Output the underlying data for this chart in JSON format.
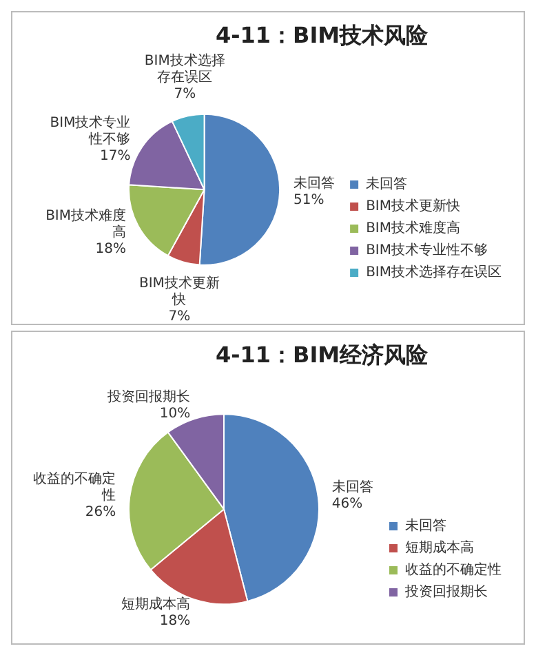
{
  "chart_data": [
    {
      "type": "pie",
      "title": "4-11：BIM技术风险",
      "categories": [
        "未回答",
        "BIM技术更新快",
        "BIM技术难度高",
        "BIM技术专业性不够",
        "BIM技术选择存在误区"
      ],
      "values": [
        51,
        7,
        18,
        17,
        7
      ],
      "value_labels": [
        "51%",
        "7%",
        "18%",
        "17%",
        "7%"
      ],
      "colors": [
        "#4f81bd",
        "#c0504d",
        "#9bbb59",
        "#8064a2",
        "#4bacc6"
      ],
      "legend": "right"
    },
    {
      "type": "pie",
      "title": "4-11：BIM经济风险",
      "categories": [
        "未回答",
        "短期成本高",
        "收益的不确定性",
        "投资回报期长"
      ],
      "values": [
        46,
        18,
        26,
        10
      ],
      "value_labels": [
        "46%",
        "18%",
        "26%",
        "10%"
      ],
      "colors": [
        "#4f81bd",
        "#c0504d",
        "#9bbb59",
        "#8064a2"
      ],
      "legend": "right"
    }
  ]
}
